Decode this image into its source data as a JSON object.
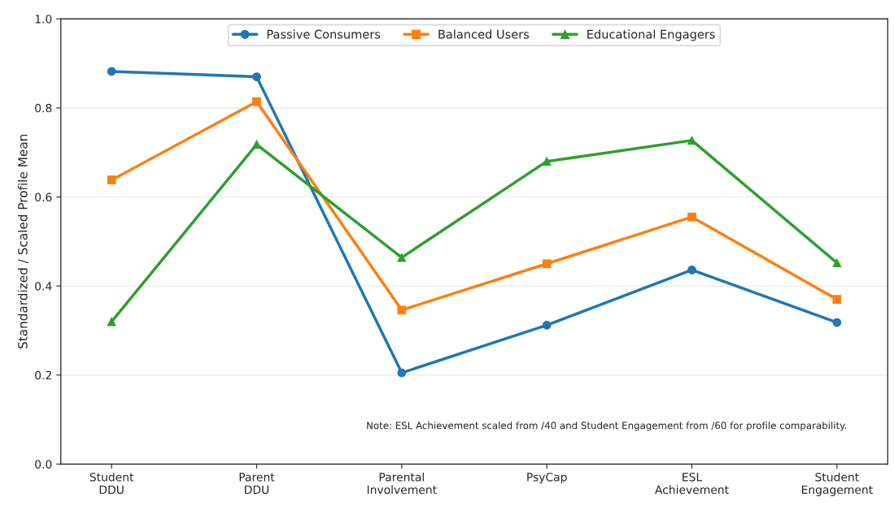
{
  "chart_data": {
    "type": "line",
    "ylabel": "Standardized / Scaled Profile Mean",
    "categories": [
      "Student\nDDU",
      "Parent\nDDU",
      "Parental\nInvolvement",
      "PsyCap",
      "ESL\nAchievement",
      "Student\nEngagement"
    ],
    "series": [
      {
        "name": "Passive Consumers",
        "color": "#1f77b4",
        "marker": "circle",
        "values": [
          0.882,
          0.87,
          0.205,
          0.312,
          0.436,
          0.318
        ]
      },
      {
        "name": "Balanced Users",
        "color": "#ff7f0e",
        "marker": "square",
        "values": [
          0.638,
          0.814,
          0.346,
          0.45,
          0.555,
          0.37
        ]
      },
      {
        "name": "Educational Engagers",
        "color": "#2ca02c",
        "marker": "triangle",
        "values": [
          0.32,
          0.718,
          0.464,
          0.68,
          0.727,
          0.452
        ]
      }
    ],
    "ylim": [
      0,
      1.0
    ],
    "yticks": [
      {
        "value": 0,
        "label": "0.0"
      },
      {
        "value": 0.2,
        "label": "0.2"
      },
      {
        "value": 0.4,
        "label": "0.4"
      },
      {
        "value": 0.6,
        "label": "0.6"
      },
      {
        "value": 0.8,
        "label": "0.8"
      },
      {
        "value": 1.0,
        "label": "1.0"
      }
    ],
    "grid": "y",
    "legend": "top",
    "line_style": "solid",
    "annotations": [
      "Note: ESL Achievement scaled from /40 and Student Engagement from /60 for profile comparability."
    ]
  }
}
